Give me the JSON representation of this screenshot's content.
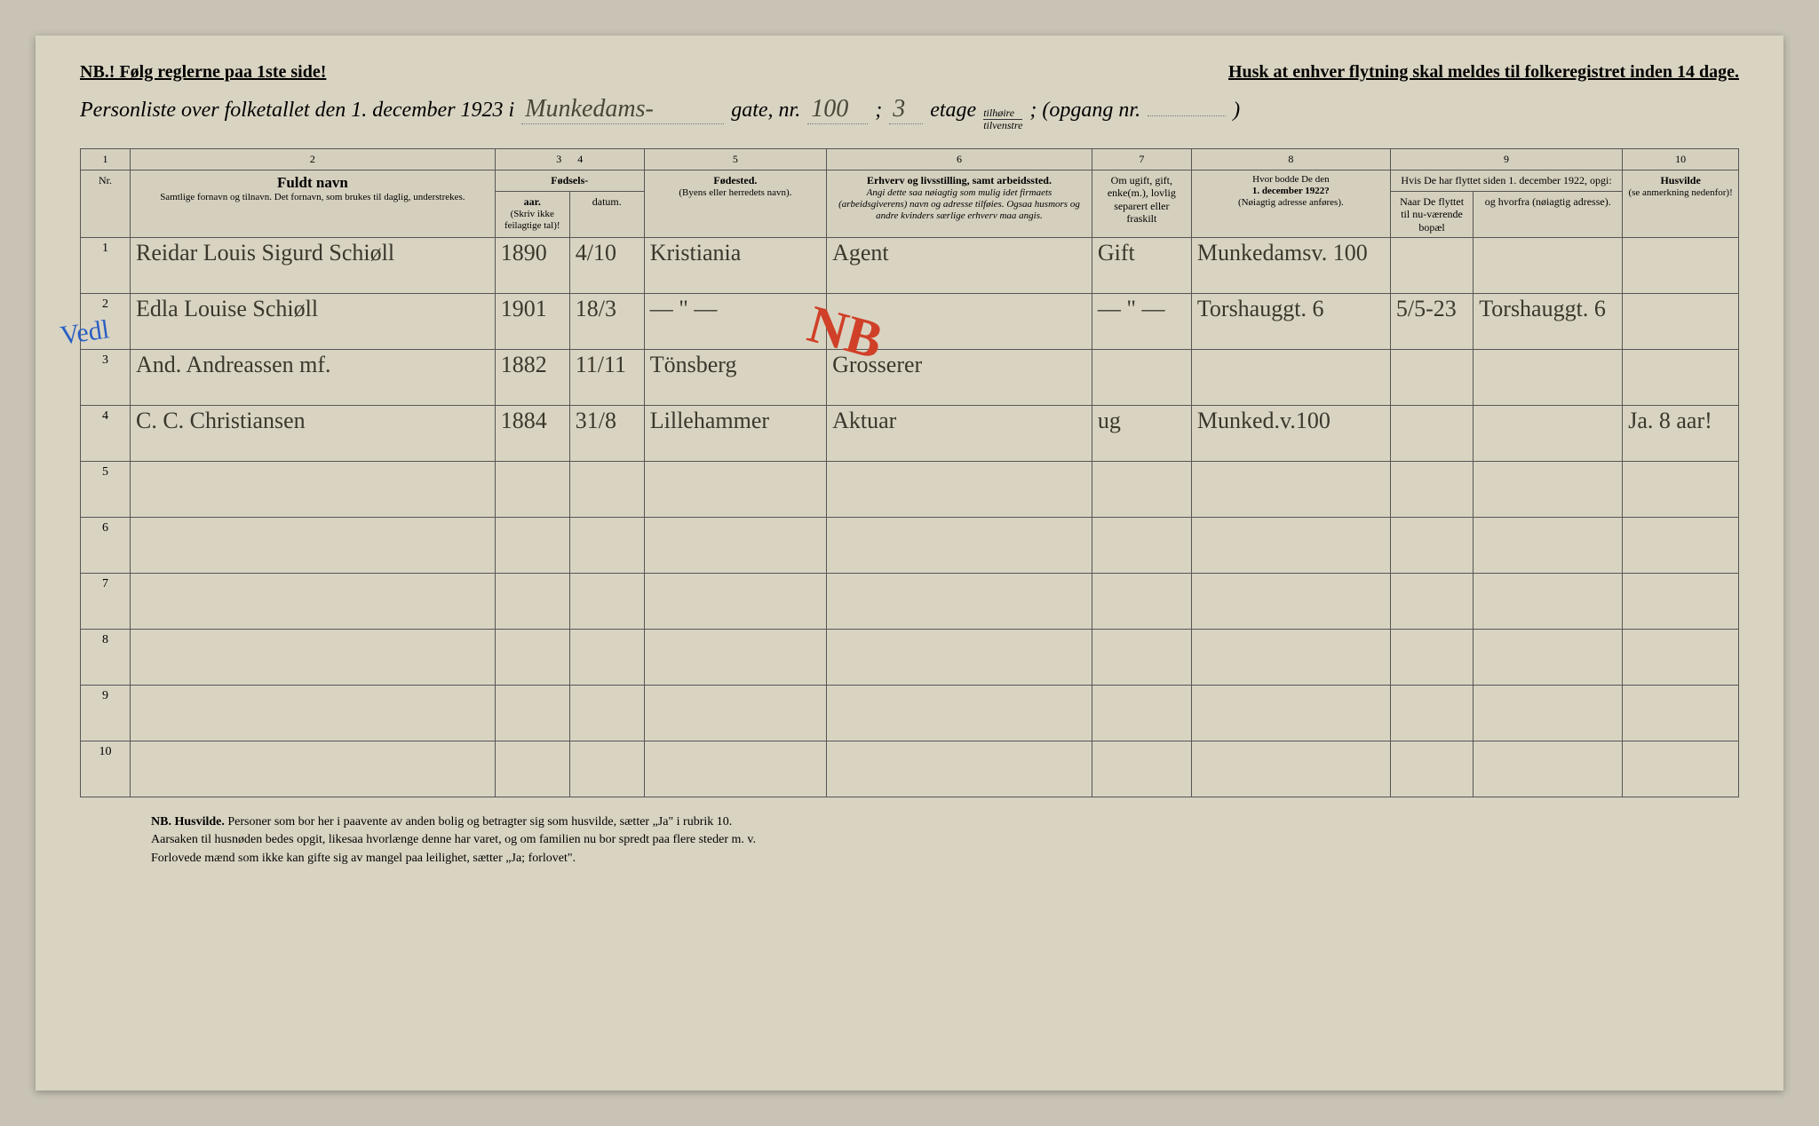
{
  "top": {
    "left": "NB.! Følg reglerne paa 1ste side!",
    "right": "Husk at enhver flytning skal meldes til folkeregistret inden 14 dage."
  },
  "header": {
    "lead": "Personliste over folketallet den 1. december 1923 i",
    "street": "Munkedams-",
    "gate": "gate, nr.",
    "nr": "100",
    "semi": ";",
    "etage_val": "3",
    "etage_lbl": "etage",
    "frac_top": "tilhøire",
    "frac_bot": "tilvenstre",
    "opgang_lbl": "; (opgang nr.",
    "opgang_val": "",
    "close": ")"
  },
  "colnums": [
    "1",
    "2",
    "3",
    "4",
    "5",
    "6",
    "7",
    "8",
    "9",
    "10"
  ],
  "cols": {
    "nr": "Nr.",
    "navn_title": "Fuldt navn",
    "navn_sub": "Samtlige fornavn og tilnavn. Det fornavn, som brukes til daglig, understrekes.",
    "fodsels": "Fødsels-",
    "aar": "aar.",
    "datum": "datum.",
    "aar_note": "(Skriv ikke feilagtige tal)!",
    "fodested": "Fødested.",
    "fodested_sub": "(Byens eller herredets navn).",
    "erhverv": "Erhverv og livsstilling, samt arbeidssted.",
    "erhverv_sub": "Angi dette saa nøiagtig som mulig idet firmaets (arbeidsgiverens) navn og adresse tilføies. Ogsaa husmors og andre kvinders særlige erhverv maa angis.",
    "status": "Om ugift, gift, enke(m.), lovlig separert eller fraskilt",
    "bodde": "Hvor bodde De den",
    "bodde_date": "1. december 1922?",
    "bodde_sub": "(Nøiagtig adresse anføres).",
    "flyttet": "Hvis De har flyttet siden 1. december 1922, opgi:",
    "naar": "Naar De flyttet til nu-værende bopæl",
    "hvorfra": "og hvorfra (nøiagtig adresse).",
    "husvilde": "Husvilde",
    "husvilde_sub": "(se anmerkning nedenfor)!"
  },
  "rows": [
    {
      "nr": "1",
      "navn": "Reidar Louis Sigurd Schiøll",
      "aar": "1890",
      "datum": "4/10",
      "sted": "Kristiania",
      "erhverv": "Agent",
      "status": "Gift",
      "bodde": "Munkedamsv. 100",
      "naar": "",
      "hvorfra": "",
      "husv": ""
    },
    {
      "nr": "2",
      "navn": "Edla Louise Schiøll",
      "aar": "1901",
      "datum": "18/3",
      "sted": "— \" —",
      "erhverv": "",
      "status": "— \" —",
      "bodde": "Torshauggt. 6",
      "naar": "5/5-23",
      "hvorfra": "Torshauggt. 6",
      "husv": ""
    },
    {
      "nr": "3",
      "navn": "And. Andreassen mf.",
      "aar": "1882",
      "datum": "11/11",
      "sted": "Tönsberg",
      "erhverv": "Grosserer",
      "status": "",
      "bodde": "",
      "naar": "",
      "hvorfra": "",
      "husv": ""
    },
    {
      "nr": "4",
      "navn": "C. C. Christiansen",
      "aar": "1884",
      "datum": "31/8",
      "sted": "Lillehammer",
      "erhverv": "Aktuar",
      "status": "ug",
      "bodde": "Munked.v.100",
      "naar": "",
      "hvorfra": "",
      "husv": "Ja. 8 aar!"
    }
  ],
  "footnote": {
    "lead": "NB.  Husvilde.",
    "l1": "Personer som bor her i paavente av anden bolig og betragter sig som husvilde, sætter „Ja\" i rubrik 10.",
    "l2": "Aarsaken til husnøden bedes opgit, likesaa hvorlænge denne har varet, og om familien nu bor spredt paa flere steder m. v.",
    "l3": "Forlovede mænd som ikke kan gifte sig av mangel paa leilighet, sætter „Ja; forlovet\"."
  },
  "marginal": "Vedl",
  "redmark": "NB"
}
